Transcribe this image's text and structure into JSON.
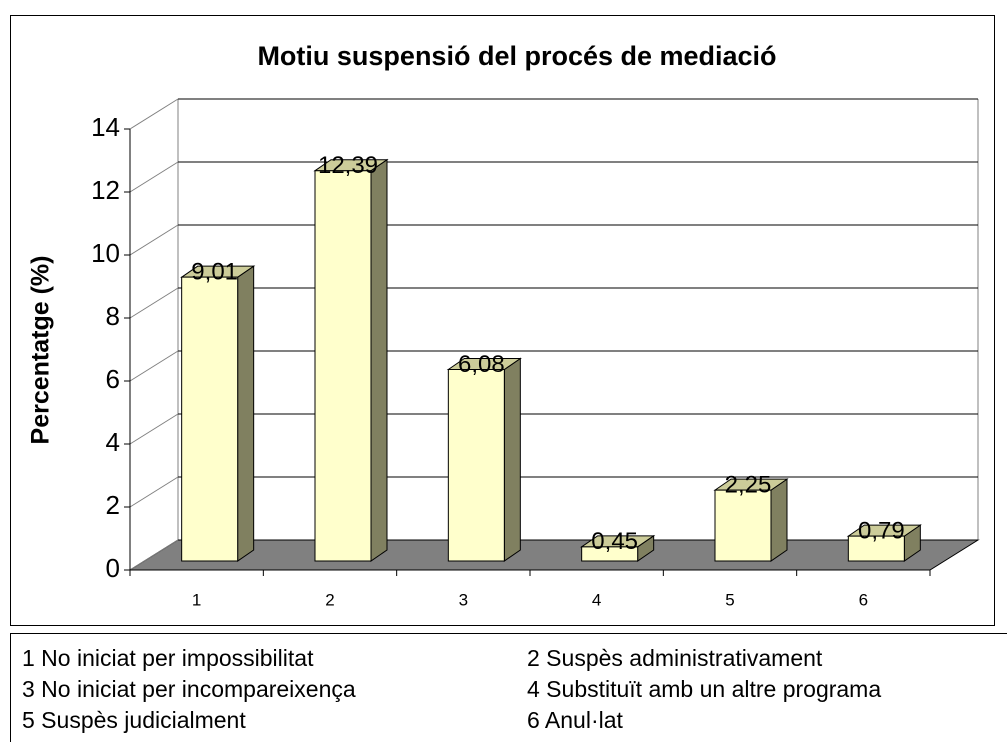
{
  "chart_data": {
    "type": "bar3d",
    "title": "Motiu suspensió del procés de mediació",
    "y_label": "Percentatge (%)",
    "categories": [
      "1",
      "2",
      "3",
      "4",
      "5",
      "6"
    ],
    "values": [
      9.01,
      12.39,
      6.08,
      0.45,
      2.25,
      0.79
    ],
    "value_labels": [
      "9,01",
      "12,39",
      "6,08",
      "0,45",
      "2,25",
      "0,79"
    ],
    "color": "#ffffcc",
    "ylim": [
      0,
      14
    ],
    "yticks": [
      0,
      2,
      4,
      6,
      8,
      10,
      12,
      14
    ],
    "grid": true,
    "category_descriptions": [
      "1 No iniciat per impossibilitat",
      "2  Suspès administrativament",
      "3 No iniciat per incompareixença",
      "4  Substituït amb un altre programa",
      "5 Suspès judicialment",
      "6  Anul·lat"
    ]
  }
}
